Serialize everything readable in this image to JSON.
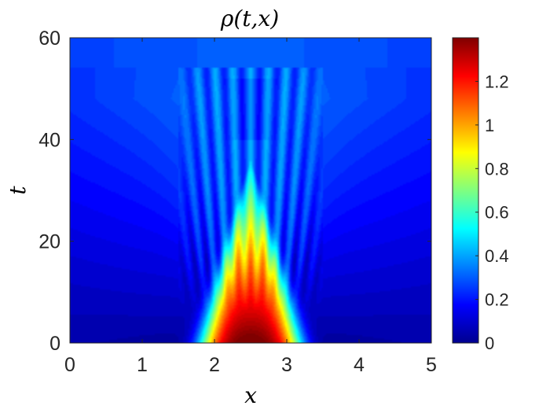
{
  "chart_data": {
    "type": "heatmap",
    "title": "ρ(t,x)",
    "xlabel": "x",
    "ylabel": "t",
    "xlim": [
      0,
      5
    ],
    "ylim": [
      0,
      60
    ],
    "x_ticks": [
      "0",
      "1",
      "2",
      "3",
      "4",
      "5"
    ],
    "y_ticks": [
      "0",
      "20",
      "40",
      "60"
    ],
    "colorbar": {
      "colormap": "jet",
      "range": [
        0,
        1.4
      ],
      "ticks": [
        "0",
        "0.2",
        "0.4",
        "0.6",
        "0.8",
        "1",
        "1.2"
      ],
      "tick_values": [
        0,
        0.2,
        0.4,
        0.6,
        0.8,
        1.0,
        1.2
      ]
    },
    "field": {
      "description_values": "density rho over x in [0,5], t in [0,60]",
      "initial_peak": {
        "x": 2.5,
        "t": 0,
        "value": 1.35
      },
      "background_value_t0": 0.03,
      "background_value_t60": 0.3,
      "oscillation_region": {
        "x_range": [
          1.6,
          3.4
        ],
        "t_range": [
          10,
          54
        ]
      },
      "cone_apex": {
        "x": 2.5,
        "t": 35
      }
    }
  }
}
